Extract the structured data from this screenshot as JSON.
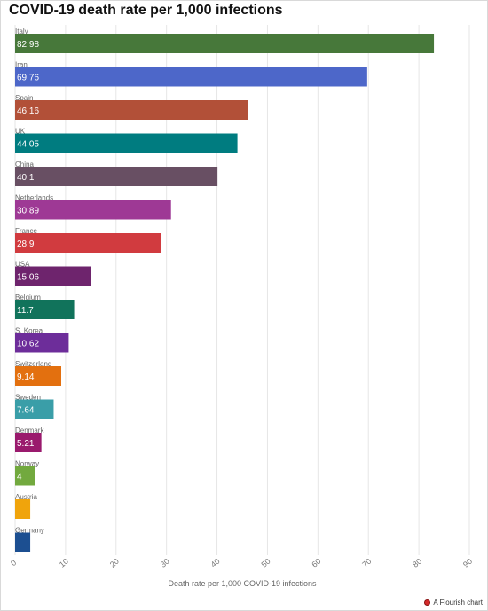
{
  "title": "COVID-19 death rate per 1,000 infections",
  "credit": {
    "label": "A Flourish chart",
    "icon": "flourish-logo-icon"
  },
  "chart_data": {
    "type": "bar",
    "orientation": "horizontal",
    "title": "COVID-19 death rate per 1,000 infections",
    "xlabel": "Death rate per 1,000 COVID-19 infections",
    "ylabel": "",
    "xlim": [
      0,
      90
    ],
    "ticks": [
      0,
      10,
      20,
      30,
      40,
      50,
      60,
      70,
      80,
      90
    ],
    "grid": true,
    "categories": [
      "Italy",
      "Iran",
      "Spain",
      "UK",
      "China",
      "Netherlands",
      "France",
      "USA",
      "Belgium",
      "S. Korea",
      "Switzerland",
      "Sweden",
      "Denmark",
      "Norway",
      "Austria",
      "Germany"
    ],
    "values": [
      82.98,
      69.76,
      46.16,
      44.05,
      40.1,
      30.89,
      28.9,
      15.06,
      11.7,
      10.62,
      9.14,
      7.64,
      5.21,
      4,
      3,
      3
    ],
    "value_labels": [
      "82.98",
      "69.76",
      "46.16",
      "44.05",
      "40.1",
      "30.89",
      "28.9",
      "15.06",
      "11.7",
      "10.62",
      "9.14",
      "7.64",
      "5.21",
      "4",
      "",
      ""
    ],
    "colors": [
      "#47783a",
      "#4d67c9",
      "#b25038",
      "#007c80",
      "#684f63",
      "#9e3995",
      "#d13b3f",
      "#6e246d",
      "#11735b",
      "#6d2d9a",
      "#e3700f",
      "#3a9ea8",
      "#9a1a6d",
      "#72a93e",
      "#f0a40c",
      "#1c4f91"
    ]
  }
}
